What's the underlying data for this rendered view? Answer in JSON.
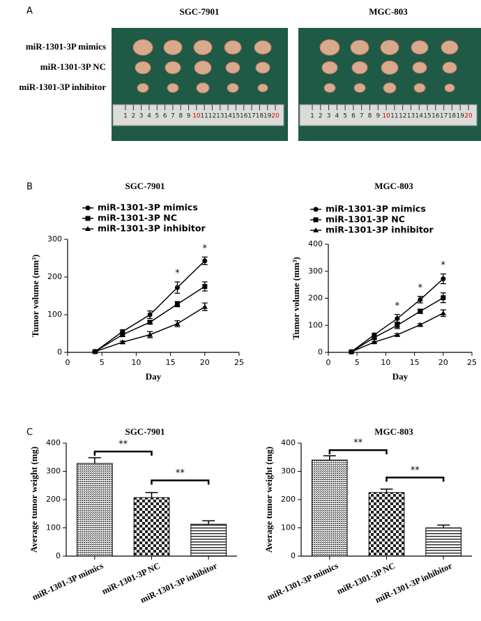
{
  "panel_labels": [
    "A",
    "B",
    "C"
  ],
  "photo_panel": {
    "titles": [
      "SGC-7901",
      "MGC-803"
    ],
    "row_labels": [
      "miR-1301-3P mimics",
      "miR-1301-3P NC",
      "miR-1301-3P inhibitor"
    ],
    "ruler_labels": [
      "1",
      "2",
      "3",
      "4",
      "5",
      "6",
      "7",
      "8",
      "9",
      "10",
      "11",
      "12",
      "13",
      "14",
      "15",
      "16",
      "17",
      "18",
      "19",
      "20"
    ]
  },
  "chart_data": [
    {
      "type": "line",
      "title": "SGC-7901",
      "x_label": "Day",
      "y_label": "Tumor volume (mm³)",
      "x": [
        4,
        8,
        12,
        16,
        20
      ],
      "xlim": [
        0,
        25
      ],
      "xticks": [
        0,
        5,
        10,
        15,
        20,
        25
      ],
      "ylim": [
        0,
        300
      ],
      "yticks": [
        0,
        100,
        200,
        300
      ],
      "series": [
        {
          "name": "miR-1301-3P mimics",
          "color": "#000000",
          "marker": "circle",
          "values": [
            2,
            55,
            100,
            172,
            243
          ],
          "errors": [
            1,
            5,
            10,
            15,
            10
          ]
        },
        {
          "name": "miR-1301-3P NC",
          "color": "#000000",
          "marker": "square",
          "values": [
            2,
            47,
            80,
            128,
            175
          ],
          "errors": [
            1,
            5,
            5,
            7,
            12
          ]
        },
        {
          "name": "miR-1301-3P inhibitor",
          "color": "#000000",
          "marker": "triangle",
          "values": [
            2,
            27,
            47,
            76,
            121
          ],
          "errors": [
            1,
            3,
            8,
            8,
            10
          ]
        }
      ],
      "annotations": [
        {
          "text": "*",
          "x": 16
        },
        {
          "text": "*",
          "x": 20
        }
      ]
    },
    {
      "type": "line",
      "title": "MGC-803",
      "x_label": "Day",
      "y_label": "Tumor volume (mm³)",
      "x": [
        4,
        8,
        12,
        16,
        20
      ],
      "xlim": [
        0,
        25
      ],
      "xticks": [
        0,
        5,
        10,
        15,
        20,
        25
      ],
      "ylim": [
        0,
        400
      ],
      "yticks": [
        0,
        100,
        200,
        300,
        400
      ],
      "series": [
        {
          "name": "miR-1301-3P mimics",
          "color": "#000000",
          "marker": "circle",
          "values": [
            2,
            65,
            125,
            195,
            272
          ],
          "errors": [
            1,
            5,
            15,
            12,
            18
          ]
        },
        {
          "name": "miR-1301-3P NC",
          "color": "#000000",
          "marker": "square",
          "values": [
            2,
            55,
            100,
            152,
            202
          ],
          "errors": [
            1,
            5,
            12,
            8,
            18
          ]
        },
        {
          "name": "miR-1301-3P inhibitor",
          "color": "#000000",
          "marker": "triangle",
          "values": [
            2,
            38,
            65,
            102,
            145
          ],
          "errors": [
            1,
            3,
            4,
            4,
            12
          ]
        }
      ],
      "annotations": [
        {
          "text": "*",
          "x": 12
        },
        {
          "text": "*",
          "x": 16
        },
        {
          "text": "*",
          "x": 20
        }
      ]
    },
    {
      "type": "bar",
      "title": "SGC-7901",
      "y_label": "Average tumor weight (mg)",
      "categories": [
        "miR-1301-3P mimics",
        "miR-1301-3P NC",
        "miR-1301-3P inhibitor"
      ],
      "values": [
        328,
        207,
        113
      ],
      "errors": [
        20,
        18,
        12
      ],
      "ylim": [
        0,
        400
      ],
      "yticks": [
        0,
        100,
        200,
        300,
        400
      ],
      "significance": [
        {
          "text": "**",
          "from": 0,
          "to": 1,
          "y": 370
        },
        {
          "text": "**",
          "from": 1,
          "to": 2,
          "y": 268
        }
      ]
    },
    {
      "type": "bar",
      "title": "MGC-803",
      "y_label": "Average tumor weight (mg)",
      "categories": [
        "miR-1301-3P mimics",
        "miR-1301-3P NC",
        "miR-1301-3P inhibitor"
      ],
      "values": [
        340,
        225,
        100
      ],
      "errors": [
        15,
        12,
        10
      ],
      "ylim": [
        0,
        400
      ],
      "yticks": [
        0,
        100,
        200,
        300,
        400
      ],
      "significance": [
        {
          "text": "**",
          "from": 0,
          "to": 1,
          "y": 375
        },
        {
          "text": "**",
          "from": 1,
          "to": 2,
          "y": 278
        }
      ]
    }
  ]
}
